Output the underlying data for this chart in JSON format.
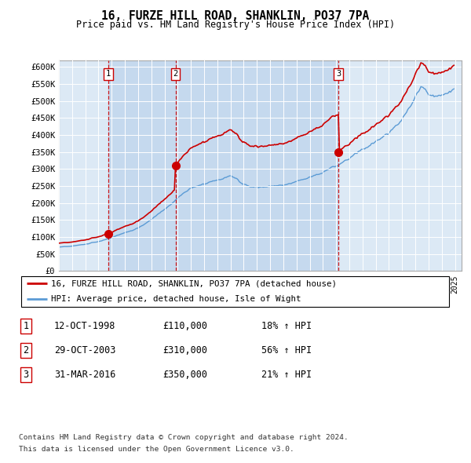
{
  "title": "16, FURZE HILL ROAD, SHANKLIN, PO37 7PA",
  "subtitle": "Price paid vs. HM Land Registry's House Price Index (HPI)",
  "ylim": [
    0,
    620000
  ],
  "yticks": [
    0,
    50000,
    100000,
    150000,
    200000,
    250000,
    300000,
    350000,
    400000,
    450000,
    500000,
    550000,
    600000
  ],
  "ytick_labels": [
    "£0",
    "£50K",
    "£100K",
    "£150K",
    "£200K",
    "£250K",
    "£300K",
    "£350K",
    "£400K",
    "£450K",
    "£500K",
    "£550K",
    "£600K"
  ],
  "bg_color": "#dce9f5",
  "sale1_date_num": 1998.75,
  "sale2_date_num": 2003.833,
  "sale3_date_num": 2016.167,
  "sale1_price": 110000,
  "sale2_price": 310000,
  "sale3_price": 350000,
  "sale_labels": [
    "1",
    "2",
    "3"
  ],
  "legend_entry1": "16, FURZE HILL ROAD, SHANKLIN, PO37 7PA (detached house)",
  "legend_entry2": "HPI: Average price, detached house, Isle of Wight",
  "footer1": "Contains HM Land Registry data © Crown copyright and database right 2024.",
  "footer2": "This data is licensed under the Open Government Licence v3.0.",
  "table_rows": [
    [
      "1",
      "12-OCT-1998",
      "£110,000",
      "18% ↑ HPI"
    ],
    [
      "2",
      "29-OCT-2003",
      "£310,000",
      "56% ↑ HPI"
    ],
    [
      "3",
      "31-MAR-2016",
      "£350,000",
      "21% ↑ HPI"
    ]
  ],
  "red_color": "#cc0000",
  "blue_color": "#5b9bd5",
  "shade_color": "#c5d9ee"
}
